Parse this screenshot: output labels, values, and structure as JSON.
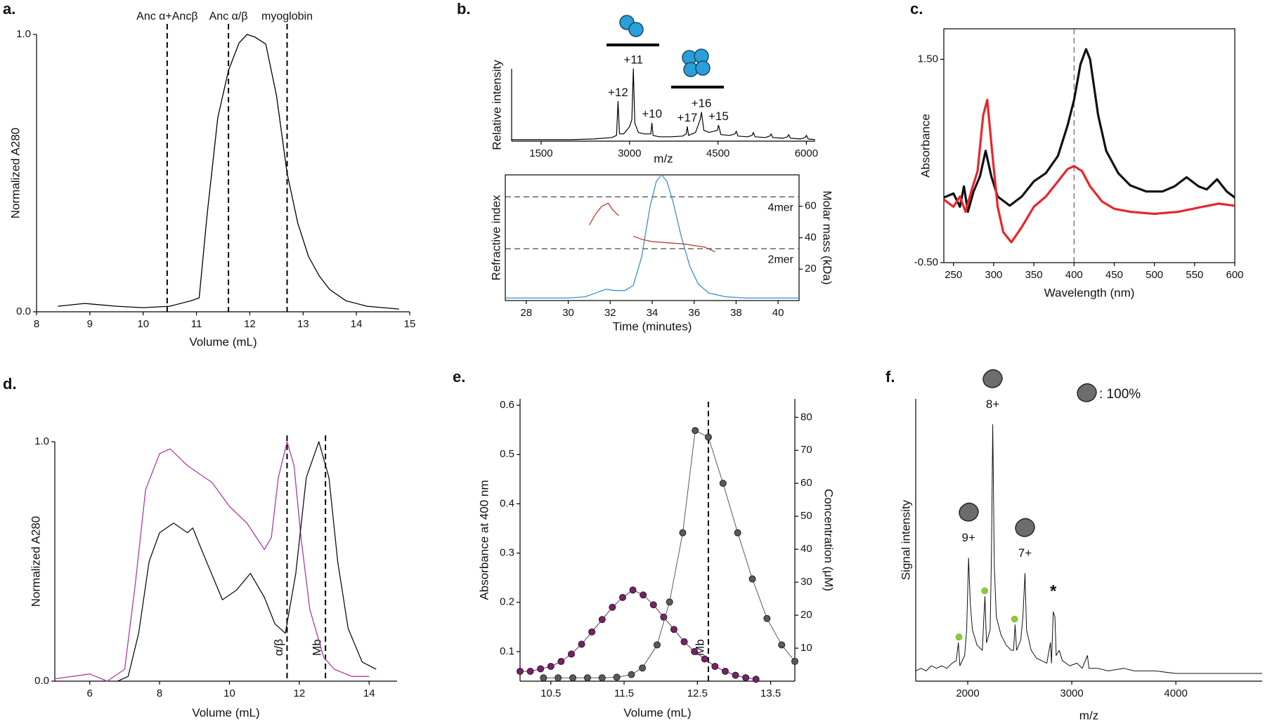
{
  "chart_data": [
    {
      "label": "a.",
      "type": "line",
      "xlabel": "Volume (mL)",
      "ylabel": "Normalized A280",
      "xlim": [
        8,
        15
      ],
      "xticks": [
        8,
        9,
        10,
        11,
        12,
        13,
        14,
        15
      ],
      "ylim": [
        0,
        1
      ],
      "yticks": [
        {
          "value": 0,
          "label": "0.0"
        },
        {
          "value": 1,
          "label": "1.0"
        }
      ],
      "vlines": [
        {
          "x": 10.45,
          "label": "Anc α+Ancβ"
        },
        {
          "x": 11.6,
          "label": "Anc α/β"
        },
        {
          "x": 12.7,
          "label": "myoglobin"
        }
      ],
      "series": [
        {
          "color": "#000000",
          "x": [
            8.4,
            8.9,
            9.5,
            10,
            10.5,
            10.9,
            11.05,
            11.2,
            11.4,
            11.6,
            11.8,
            11.95,
            12.1,
            12.3,
            12.5,
            12.7,
            12.9,
            13.1,
            13.3,
            13.5,
            13.8,
            14.2,
            14.8
          ],
          "values": [
            0.02,
            0.03,
            0.02,
            0.015,
            0.02,
            0.04,
            0.05,
            0.35,
            0.7,
            0.87,
            0.97,
            1.0,
            0.99,
            0.965,
            0.78,
            0.5,
            0.32,
            0.2,
            0.13,
            0.08,
            0.04,
            0.02,
            0.01
          ]
        }
      ]
    },
    {
      "label": "b.",
      "type": "line",
      "xlabel": "m/z",
      "ylabel": "Relative intensity",
      "xlim": [
        1000,
        6150
      ],
      "xticks": [
        1500,
        3000,
        4500,
        6000
      ],
      "ylim": [
        0,
        1
      ],
      "annotations": [
        {
          "text": "+12",
          "x": 2805
        },
        {
          "text": "+11",
          "x": 3065
        },
        {
          "text": "+10",
          "x": 3380
        },
        {
          "text": "+17",
          "x": 3980
        },
        {
          "text": "+16",
          "x": 4220
        },
        {
          "text": "+15",
          "x": 4510
        }
      ],
      "series": [
        {
          "color": "#000000",
          "x": [
            1000,
            1500,
            2000,
            2400,
            2700,
            2780,
            2805,
            2830,
            2900,
            2950,
            3000,
            3040,
            3065,
            3090,
            3150,
            3250,
            3360,
            3380,
            3400,
            3500,
            3700,
            3900,
            3960,
            3980,
            4000,
            4120,
            4200,
            4220,
            4260,
            4350,
            4490,
            4510,
            4550,
            4700,
            4790,
            4810,
            4840,
            5000,
            5080,
            5100,
            5130,
            5300,
            5380,
            5400,
            5430,
            5600,
            5680,
            5700,
            5730,
            5900,
            5980,
            6000,
            6030,
            6150
          ],
          "values": [
            0.02,
            0.02,
            0.02,
            0.03,
            0.05,
            0.08,
            0.55,
            0.1,
            0.1,
            0.15,
            0.2,
            0.3,
            1.0,
            0.25,
            0.12,
            0.1,
            0.1,
            0.25,
            0.08,
            0.06,
            0.06,
            0.07,
            0.1,
            0.2,
            0.08,
            0.12,
            0.3,
            0.4,
            0.15,
            0.12,
            0.15,
            0.22,
            0.09,
            0.08,
            0.1,
            0.14,
            0.07,
            0.06,
            0.08,
            0.12,
            0.06,
            0.05,
            0.07,
            0.1,
            0.05,
            0.04,
            0.06,
            0.09,
            0.04,
            0.03,
            0.05,
            0.08,
            0.03,
            0.02
          ]
        }
      ]
    },
    {
      "type": "line",
      "xlabel": "Time (minutes)",
      "ylabel": "Refractive index",
      "y2label": "Molar mass (kDa)",
      "xlim": [
        27,
        41
      ],
      "xticks": [
        28,
        30,
        32,
        34,
        36,
        38,
        40
      ],
      "ylim": [
        0,
        1
      ],
      "y2lim": [
        0,
        80
      ],
      "y2ticks": [
        20,
        40,
        60
      ],
      "hlines": [
        {
          "y": 66,
          "label": "4mer",
          "axis": "y2"
        },
        {
          "y": 33,
          "label": "2mer",
          "axis": "y2"
        }
      ],
      "series": [
        {
          "color": "#3b8fcf",
          "x": [
            27,
            29,
            30,
            30.8,
            31.3,
            31.8,
            32.2,
            32.7,
            33.1,
            33.5,
            33.9,
            34.2,
            34.45,
            34.7,
            35,
            35.4,
            35.8,
            36.2,
            36.7,
            37.5,
            38.5,
            41
          ],
          "values": [
            0.02,
            0.02,
            0.02,
            0.03,
            0.06,
            0.09,
            0.08,
            0.08,
            0.12,
            0.35,
            0.75,
            0.95,
            1.0,
            0.95,
            0.78,
            0.5,
            0.27,
            0.13,
            0.06,
            0.03,
            0.02,
            0.02
          ]
        },
        {
          "color": "#c0392b",
          "axis": "y2",
          "x": [
            31,
            31.3,
            31.6,
            31.9,
            32.1,
            32.4,
            32.7,
            33.1,
            33.5,
            34,
            34.5,
            35,
            35.5,
            36,
            36.5,
            37
          ],
          "values": [
            48,
            55,
            60,
            62,
            58,
            54,
            null,
            41,
            39,
            37.5,
            37,
            36.5,
            36,
            35,
            34,
            31
          ]
        }
      ]
    },
    {
      "label": "c.",
      "type": "line",
      "xlabel": "Wavelength (nm)",
      "ylabel": "Absorbance",
      "xlim": [
        238,
        600
      ],
      "xticks": [
        250,
        300,
        350,
        400,
        450,
        500,
        550,
        600
      ],
      "ylim": [
        -0.5,
        1.8
      ],
      "yticks": [
        {
          "value": 1.5,
          "label": "1.50"
        },
        {
          "value": -0.5,
          "label": "-0.50"
        }
      ],
      "vlines": [
        {
          "x": 400
        }
      ],
      "series": [
        {
          "color": "#111111",
          "x": [
            238,
            250,
            258,
            263,
            268,
            275,
            283,
            290,
            297,
            305,
            320,
            335,
            350,
            365,
            380,
            392,
            400,
            408,
            415,
            420,
            430,
            440,
            455,
            470,
            490,
            510,
            525,
            540,
            555,
            565,
            578,
            590,
            600
          ],
          "values": [
            0.14,
            0.18,
            0.05,
            0.25,
            0,
            0.2,
            0.35,
            0.6,
            0.35,
            0.15,
            0.06,
            0.15,
            0.3,
            0.38,
            0.55,
            0.85,
            1.1,
            1.45,
            1.6,
            1.5,
            0.95,
            0.6,
            0.38,
            0.26,
            0.2,
            0.2,
            0.25,
            0.34,
            0.25,
            0.22,
            0.32,
            0.2,
            0.14
          ]
        },
        {
          "color": "#e8262b",
          "x": [
            238,
            250,
            258,
            265,
            272,
            280,
            287,
            292,
            298,
            305,
            312,
            322,
            335,
            350,
            365,
            380,
            392,
            400,
            410,
            420,
            435,
            450,
            470,
            500,
            530,
            560,
            580,
            600
          ],
          "values": [
            0.12,
            0.05,
            0.15,
            0,
            0.2,
            0.4,
            0.95,
            1.1,
            0.6,
            0.05,
            -0.2,
            -0.3,
            -0.15,
            0.05,
            0.15,
            0.3,
            0.42,
            0.45,
            0.4,
            0.25,
            0.1,
            0.03,
            0,
            -0.02,
            0,
            0.05,
            0.08,
            0.06
          ]
        }
      ]
    },
    {
      "label": "d.",
      "type": "line",
      "xlabel": "Volume (mL)",
      "ylabel": "Normalized A280",
      "xlim": [
        5,
        14.8
      ],
      "xticks": [
        6,
        8,
        10,
        12,
        14
      ],
      "ylim": [
        0,
        1
      ],
      "yticks": [
        {
          "value": 0,
          "label": "0.0"
        },
        {
          "value": 1,
          "label": "1.0"
        }
      ],
      "vlines": [
        {
          "x": 11.65,
          "label": "α/β"
        },
        {
          "x": 12.75,
          "label": "Mb"
        }
      ],
      "series": [
        {
          "color": "#b03aa5",
          "x": [
            5,
            6,
            6.5,
            7,
            7.3,
            7.6,
            8,
            8.3,
            8.8,
            9.5,
            10,
            10.5,
            11,
            11.2,
            11.4,
            11.65,
            11.85,
            12.05,
            12.3,
            12.7,
            13,
            13.5,
            14
          ],
          "values": [
            0.01,
            0.03,
            0.0,
            0.05,
            0.4,
            0.8,
            0.95,
            0.97,
            0.9,
            0.83,
            0.73,
            0.66,
            0.55,
            0.6,
            0.85,
            1.0,
            0.9,
            0.6,
            0.3,
            0.1,
            0.05,
            0.02,
            0.02
          ]
        },
        {
          "color": "#111111",
          "x": [
            6.8,
            7.1,
            7.4,
            7.7,
            8,
            8.4,
            8.8,
            8.95,
            9.2,
            9.8,
            10.2,
            10.6,
            11,
            11.3,
            11.6,
            11.9,
            12.2,
            12.56,
            12.85,
            13.1,
            13.4,
            13.8,
            14.2
          ],
          "values": [
            0.0,
            0.02,
            0.2,
            0.5,
            0.62,
            0.66,
            0.62,
            0.64,
            0.55,
            0.34,
            0.38,
            0.45,
            0.35,
            0.24,
            0.2,
            0.45,
            0.85,
            1.0,
            0.85,
            0.5,
            0.22,
            0.08,
            0.05
          ]
        }
      ]
    },
    {
      "label": "e.",
      "type": "line",
      "markers": true,
      "xlabel": "Volume (mL)",
      "ylabel": "Absorbance at 400 nm",
      "y2label": "Concentration (μM)",
      "xlim": [
        10.08,
        13.83
      ],
      "xticks": [
        10.5,
        11.5,
        12.5,
        13.5
      ],
      "ylim": [
        0.04,
        0.613
      ],
      "yticks": [
        0.1,
        0.2,
        0.3,
        0.4,
        0.5,
        0.6
      ],
      "y2lim": [
        0,
        85.6
      ],
      "y2ticks": [
        10,
        20,
        30,
        40,
        50,
        60,
        70,
        80
      ],
      "vlines": [
        {
          "x": 12.65,
          "label": "Mb"
        }
      ],
      "series": [
        {
          "color": "#7a1f6b",
          "x": [
            10.08,
            10.22,
            10.36,
            10.5,
            10.64,
            10.78,
            10.92,
            11.06,
            11.2,
            11.34,
            11.48,
            11.62,
            11.76,
            11.9,
            12.04,
            12.18,
            12.32,
            12.46,
            12.6,
            12.74,
            12.88,
            13.02,
            13.16,
            13.3
          ],
          "values": [
            0.06,
            0.06,
            0.065,
            0.07,
            0.08,
            0.095,
            0.115,
            0.14,
            0.165,
            0.19,
            0.21,
            0.225,
            0.215,
            0.195,
            0.17,
            0.145,
            0.12,
            0.1,
            0.085,
            0.07,
            0.06,
            0.052,
            0.047,
            0.044
          ]
        },
        {
          "color": "#5a5a5a",
          "axis": "y2",
          "x": [
            10.4,
            10.6,
            10.8,
            11.0,
            11.2,
            11.4,
            11.6,
            11.75,
            11.95,
            12.12,
            12.3,
            12.47,
            12.65,
            12.85,
            13.05,
            13.25,
            13.45,
            13.65,
            13.83
          ],
          "values": [
            1,
            1,
            1,
            1,
            1,
            1.2,
            2,
            4,
            11,
            24,
            45,
            76,
            74,
            60,
            45,
            31,
            19,
            11,
            6
          ]
        }
      ]
    },
    {
      "label": "f.",
      "type": "line",
      "xlabel": "m/z",
      "ylabel": "Signal intensity",
      "xlim": [
        1500,
        4830
      ],
      "xticks": [
        2000,
        3000,
        4000
      ],
      "ylim": [
        0,
        1.1
      ],
      "annotations": [
        {
          "text": "9+",
          "x": 2008
        },
        {
          "text": "8+",
          "x": 2240
        },
        {
          "text": "7+",
          "x": 2550
        },
        {
          "text": "*",
          "x": 2822
        }
      ],
      "note": ": 100%",
      "dots": {
        "color": "#8dc63f",
        "x": [
          1915,
          2163,
          2450
        ]
      },
      "series": [
        {
          "color": "#111111",
          "x": [
            1500,
            1550,
            1600,
            1650,
            1700,
            1750,
            1800,
            1850,
            1890,
            1910,
            1925,
            1970,
            1990,
            2008,
            2025,
            2045,
            2090,
            2140,
            2155,
            2165,
            2180,
            2215,
            2228,
            2240,
            2255,
            2275,
            2320,
            2370,
            2420,
            2440,
            2455,
            2470,
            2510,
            2530,
            2550,
            2565,
            2610,
            2660,
            2710,
            2760,
            2795,
            2805,
            2822,
            2838,
            2850,
            2880,
            2910,
            2980,
            3050,
            3100,
            3150,
            3165,
            3250,
            3350,
            3500,
            3600,
            3800,
            4000,
            4200,
            4500,
            4830
          ],
          "values": [
            0.04,
            0.05,
            0.04,
            0.06,
            0.05,
            0.06,
            0.05,
            0.07,
            0.08,
            0.15,
            0.06,
            0.1,
            0.2,
            0.48,
            0.3,
            0.2,
            0.14,
            0.12,
            0.25,
            0.33,
            0.15,
            0.2,
            0.5,
            1.0,
            0.45,
            0.25,
            0.18,
            0.14,
            0.12,
            0.12,
            0.22,
            0.12,
            0.16,
            0.25,
            0.42,
            0.2,
            0.12,
            0.09,
            0.08,
            0.07,
            0.15,
            0.07,
            0.27,
            0.25,
            0.1,
            0.12,
            0.08,
            0.06,
            0.07,
            0.05,
            0.1,
            0.05,
            0.05,
            0.04,
            0.05,
            0.04,
            0.04,
            0.03,
            0.03,
            0.03,
            0.03
          ]
        }
      ]
    }
  ]
}
